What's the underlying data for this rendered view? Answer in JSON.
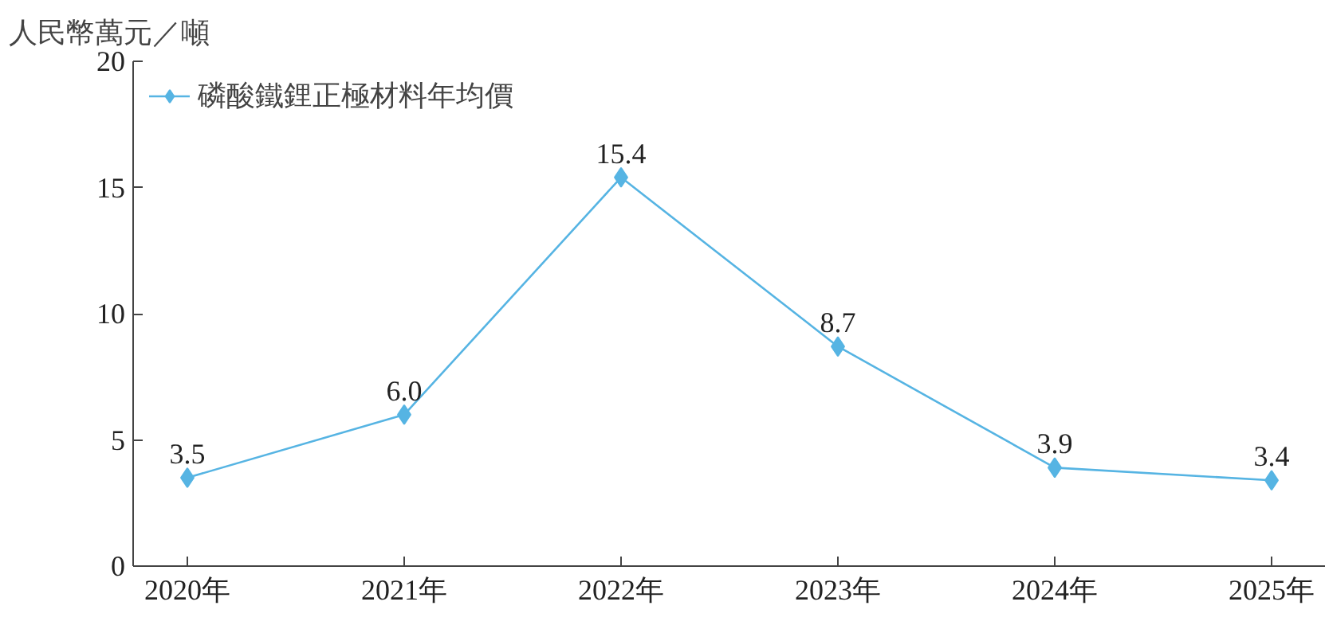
{
  "chart_data": {
    "type": "line",
    "ylabel": "人民幣萬元／噸",
    "categories": [
      "2020年",
      "2021年",
      "2022年",
      "2023年",
      "2024年",
      "2025年"
    ],
    "series": [
      {
        "name": "磷酸鐵鋰正極材料年均價",
        "color": "#56b4e3",
        "values": [
          3.5,
          6.0,
          15.4,
          8.7,
          3.9,
          3.4
        ],
        "value_labels": [
          "3.5",
          "6.0",
          "15.4",
          "8.7",
          "3.9",
          "3.4"
        ]
      }
    ],
    "ylim": [
      0,
      20
    ],
    "yticks": [
      0,
      5,
      10,
      15,
      20
    ],
    "grid": false,
    "legend": "top left",
    "marker": "diamond",
    "line_style": "solid"
  }
}
